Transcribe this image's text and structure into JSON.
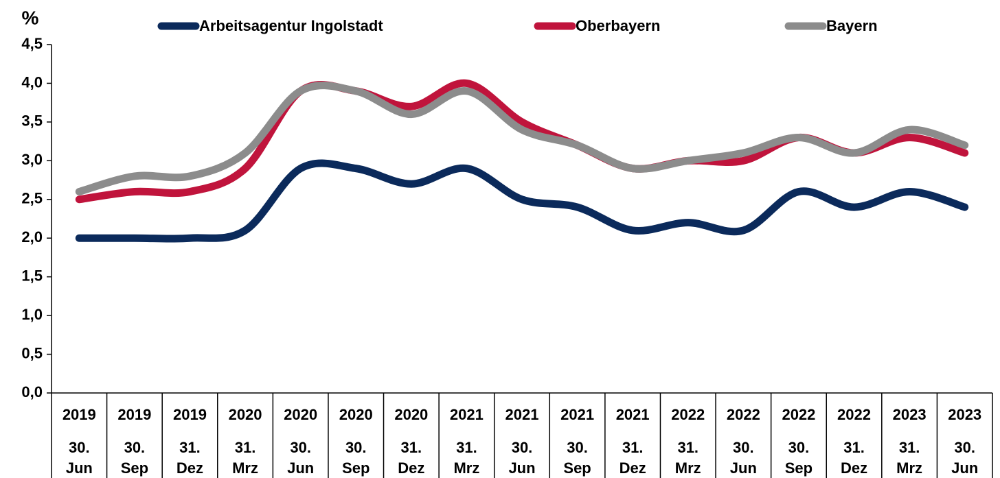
{
  "chart_data": {
    "type": "line",
    "y_label": "%",
    "categories": [
      "30. Jun",
      "30. Sep",
      "31. Dez",
      "31. Mrz",
      "30. Jun",
      "30. Sep",
      "31. Dez",
      "31. Mrz",
      "30. Jun",
      "30. Sep",
      "31. Dez",
      "31. Mrz",
      "30. Jun",
      "30. Sep",
      "31. Dez",
      "31. Mrz",
      "30. Jun"
    ],
    "category_years": [
      "2019",
      "2019",
      "2019",
      "2020",
      "2020",
      "2020",
      "2020",
      "2021",
      "2021",
      "2021",
      "2021",
      "2022",
      "2022",
      "2022",
      "2022",
      "2023",
      "2023"
    ],
    "series": [
      {
        "name": "Arbeitsagentur Ingolstadt",
        "color": "#0b2a5b",
        "values": [
          2.0,
          2.0,
          2.0,
          2.1,
          2.9,
          2.9,
          2.7,
          2.9,
          2.5,
          2.4,
          2.1,
          2.2,
          2.1,
          2.6,
          2.4,
          2.6,
          2.4
        ]
      },
      {
        "name": "Oberbayern",
        "color": "#c0143c",
        "values": [
          2.5,
          2.6,
          2.6,
          2.9,
          3.9,
          3.9,
          3.7,
          4.0,
          3.5,
          3.2,
          2.9,
          3.0,
          3.0,
          3.3,
          3.1,
          3.3,
          3.1
        ]
      },
      {
        "name": "Bayern",
        "color": "#8c8c8c",
        "values": [
          2.6,
          2.8,
          2.8,
          3.1,
          3.9,
          3.9,
          3.6,
          3.9,
          3.4,
          3.2,
          2.9,
          3.0,
          3.1,
          3.3,
          3.1,
          3.4,
          3.2
        ]
      }
    ],
    "ylim": [
      0,
      4.5
    ],
    "yticks": [
      {
        "value": 0,
        "label": "0,0"
      },
      {
        "value": 0.5,
        "label": "0,5"
      },
      {
        "value": 1,
        "label": "1,0"
      },
      {
        "value": 1.5,
        "label": "1,5"
      },
      {
        "value": 2,
        "label": "2,0"
      },
      {
        "value": 2.5,
        "label": "2,5"
      },
      {
        "value": 3,
        "label": "3,0"
      },
      {
        "value": 3.5,
        "label": "3,5"
      },
      {
        "value": 4,
        "label": "4,0"
      },
      {
        "value": 4.5,
        "label": "4,5"
      }
    ],
    "grid": false,
    "legend": "top"
  }
}
